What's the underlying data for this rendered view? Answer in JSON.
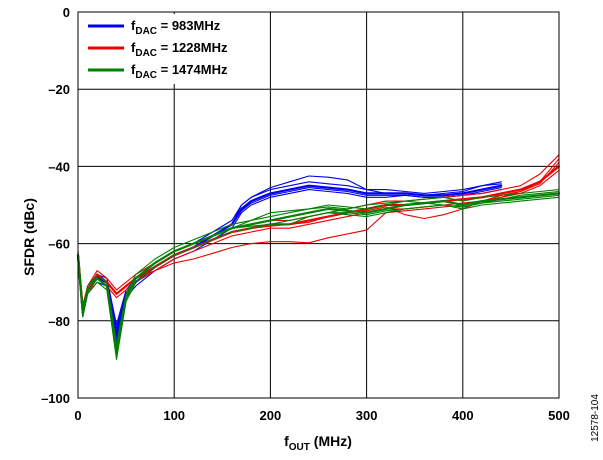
{
  "chart_data": {
    "type": "line",
    "xlabel": {
      "main": "f",
      "sub": "OUT",
      "rest": " (MHz)"
    },
    "ylabel": "SFDR (dBc)",
    "xlim": [
      0,
      500
    ],
    "ylim": [
      -100,
      0
    ],
    "x_ticks": [
      0,
      100,
      200,
      300,
      400,
      500
    ],
    "y_ticks": [
      0,
      -20,
      -40,
      -60,
      -80,
      -100
    ],
    "x_tick_labels": [
      "0",
      "100",
      "200",
      "300",
      "400",
      "500"
    ],
    "y_tick_labels": [
      "0",
      "–20",
      "–40",
      "–60",
      "–80",
      "–100"
    ],
    "grid": true,
    "legend_position": "top-left",
    "figure_id": "12578-104",
    "series": [
      {
        "name_main": "f",
        "name_sub": "DAC",
        "name_rest": " = 983MHz",
        "color": "#0000ee",
        "x": [
          0,
          5,
          10,
          20,
          30,
          40,
          50,
          60,
          80,
          100,
          120,
          140,
          160,
          170,
          180,
          200,
          220,
          240,
          260,
          280,
          300,
          320,
          340,
          360,
          380,
          400,
          420,
          440
        ],
        "y": [
          -63,
          -78,
          -72,
          -69,
          -70,
          -83,
          -73,
          -70,
          -66,
          -63,
          -61,
          -58,
          -55,
          -51,
          -49,
          -47,
          -46,
          -45,
          -45.5,
          -46,
          -47,
          -47,
          -47,
          -47.5,
          -47.5,
          -47,
          -46,
          -45
        ],
        "variants": [
          [
            -62,
            -77,
            -71,
            -68,
            -69,
            -81,
            -72,
            -69,
            -65,
            -62,
            -60,
            -57,
            -54,
            -50,
            -48,
            -46,
            -45,
            -44,
            -44.5,
            -45,
            -46,
            -46,
            -46.5,
            -47,
            -46.5,
            -46,
            -45,
            -44
          ],
          [
            -64,
            -79,
            -73,
            -70,
            -71,
            -85,
            -74,
            -71,
            -67,
            -64,
            -62,
            -59,
            -56,
            -52,
            -50,
            -48,
            -47,
            -46,
            -46.5,
            -47,
            -48,
            -48,
            -47.5,
            -48,
            -48,
            -47.5,
            -47,
            -46
          ],
          [
            -63,
            -77.5,
            -72,
            -68.5,
            -70,
            -82,
            -73,
            -70,
            -66,
            -63,
            -61,
            -58,
            -55,
            -50,
            -48,
            -45.5,
            -44,
            -42.5,
            -42.8,
            -43.5,
            -46,
            -47,
            -47,
            -47.5,
            -47,
            -46.5,
            -45,
            -44.5
          ],
          [
            -63,
            -78,
            -72,
            -69,
            -70,
            -84,
            -73,
            -70,
            -66,
            -63,
            -61,
            -58,
            -55,
            -51.5,
            -49.5,
            -47.5,
            -46.5,
            -45.5,
            -46,
            -46.5,
            -47.5,
            -47.5,
            -47.5,
            -48,
            -48,
            -47.5,
            -46.5,
            -45.5
          ]
        ]
      },
      {
        "name_main": "f",
        "name_sub": "DAC",
        "name_rest": " = 1228MHz",
        "color": "#ee0000",
        "x": [
          0,
          5,
          10,
          20,
          30,
          40,
          50,
          60,
          80,
          100,
          120,
          140,
          160,
          180,
          200,
          220,
          240,
          260,
          280,
          300,
          320,
          340,
          360,
          380,
          400,
          420,
          440,
          460,
          480,
          500
        ],
        "y": [
          -63,
          -77,
          -72,
          -68,
          -70,
          -73,
          -71,
          -69,
          -66,
          -63,
          -61,
          -59,
          -57,
          -56,
          -55,
          -55,
          -54,
          -53,
          -52,
          -51,
          -50,
          -50,
          -49.5,
          -49,
          -48.5,
          -48,
          -47,
          -46,
          -44,
          -40
        ],
        "variants": [
          [
            -62,
            -76,
            -71,
            -67,
            -69,
            -72,
            -70,
            -68,
            -65,
            -62,
            -60,
            -58,
            -56,
            -55,
            -54,
            -54,
            -53,
            -52,
            -51,
            -50,
            -49,
            -49,
            -48.5,
            -48,
            -47.5,
            -47,
            -46,
            -45,
            -42,
            -37
          ],
          [
            -64,
            -78,
            -73,
            -69,
            -71,
            -74,
            -72,
            -70,
            -67,
            -64,
            -62,
            -60,
            -58,
            -57,
            -56,
            -56,
            -55,
            -54,
            -53,
            -52,
            -51,
            -51,
            -50.5,
            -50,
            -49.5,
            -49,
            -48,
            -47,
            -45,
            -41
          ],
          [
            -63,
            -77,
            -72,
            -68,
            -70,
            -73,
            -71,
            -69,
            -67,
            -65,
            -64,
            -62.5,
            -61,
            -60,
            -59.5,
            -59.5,
            -59.8,
            -58.5,
            -57.5,
            -56.5,
            -52,
            -51.5,
            -51,
            -50.5,
            -50,
            -49,
            -48,
            -46.5,
            -44.5,
            -39
          ],
          [
            -63,
            -77,
            -72,
            -68,
            -70,
            -73,
            -71,
            -69,
            -66,
            -63,
            -61,
            -59,
            -57,
            -56,
            -55.5,
            -55,
            -54.5,
            -53,
            -52,
            -51.5,
            -50.5,
            -52.5,
            -53.5,
            -52.5,
            -51,
            -49,
            -47.5,
            -46.5,
            -44,
            -38
          ]
        ]
      },
      {
        "name_main": "f",
        "name_sub": "DAC",
        "name_rest": " = 1474MHz",
        "color": "#008000",
        "x": [
          0,
          5,
          10,
          20,
          30,
          40,
          50,
          60,
          80,
          100,
          120,
          140,
          160,
          180,
          200,
          220,
          240,
          260,
          280,
          300,
          320,
          340,
          360,
          380,
          400,
          420,
          440,
          460,
          480,
          500
        ],
        "y": [
          -63,
          -78,
          -72,
          -69,
          -71,
          -88,
          -74,
          -69,
          -65,
          -62,
          -60,
          -58,
          -56,
          -55,
          -54,
          -53,
          -52,
          -51,
          -51.5,
          -52,
          -51,
          -50,
          -49.5,
          -49,
          -50,
          -49,
          -48.5,
          -48,
          -47.5,
          -47
        ],
        "variants": [
          [
            -62,
            -77,
            -71,
            -68,
            -70,
            -86,
            -73,
            -68,
            -64,
            -61,
            -59,
            -57,
            -55,
            -54,
            -53,
            -52,
            -51,
            -50,
            -50.5,
            -51,
            -50,
            -49,
            -48.5,
            -48,
            -49,
            -48,
            -47.5,
            -47,
            -46.5,
            -46
          ],
          [
            -64,
            -79,
            -73,
            -70,
            -72,
            -90,
            -75,
            -70,
            -66,
            -63,
            -61,
            -59,
            -57,
            -56,
            -55,
            -54,
            -53,
            -52,
            -52.5,
            -53,
            -52,
            -51,
            -50.5,
            -50,
            -51,
            -50,
            -49.5,
            -49,
            -48.5,
            -48
          ],
          [
            -63,
            -78,
            -72,
            -69,
            -71,
            -87,
            -74,
            -69,
            -65,
            -62,
            -60,
            -58,
            -56,
            -54,
            -52,
            -51.5,
            -51,
            -50.5,
            -51,
            -50,
            -49.5,
            -49,
            -49.5,
            -50,
            -50.5,
            -49.5,
            -48.5,
            -47.5,
            -47,
            -46.5
          ],
          [
            -63,
            -78,
            -72,
            -69,
            -71,
            -89,
            -74,
            -69,
            -65,
            -62,
            -60,
            -58,
            -56,
            -55.5,
            -55,
            -55,
            -53,
            -52,
            -52,
            -52.5,
            -51.5,
            -51,
            -50.5,
            -50,
            -50.5,
            -49.5,
            -49,
            -48.5,
            -48,
            -47.5
          ]
        ]
      }
    ]
  }
}
